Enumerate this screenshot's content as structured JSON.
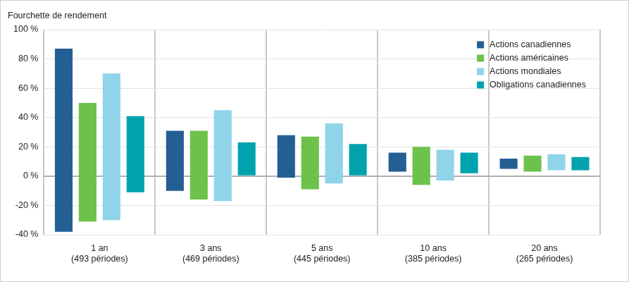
{
  "chart_data": {
    "type": "bar",
    "floating": true,
    "ylabel": "Fourchette de rendement",
    "categories": [
      "1 an\n(493 périodes)",
      "3 ans\n(469 périodes)",
      "5 ans\n(445 périodes)",
      "10 ans\n(385 périodes)",
      "20 ans\n(265 périodes)"
    ],
    "series": [
      {
        "name": "Actions canadiennes",
        "color": "#245f93",
        "values": [
          [
            -38,
            87
          ],
          [
            -10,
            31
          ],
          [
            -1,
            28
          ],
          [
            3,
            16
          ],
          [
            5,
            12
          ]
        ]
      },
      {
        "name": "Actions américaines",
        "color": "#6dc24b",
        "values": [
          [
            -31,
            50
          ],
          [
            -16,
            31
          ],
          [
            -9,
            27
          ],
          [
            -6,
            20
          ],
          [
            3,
            14
          ]
        ]
      },
      {
        "name": "Actions mondiales",
        "color": "#90d4e9",
        "values": [
          [
            -30,
            70
          ],
          [
            -17,
            45
          ],
          [
            -5,
            36
          ],
          [
            -3,
            18
          ],
          [
            4,
            15
          ]
        ]
      },
      {
        "name": "Obligations canadiennes",
        "color": "#00a3ad",
        "values": [
          [
            -11,
            41
          ],
          [
            0,
            23
          ],
          [
            0,
            22
          ],
          [
            2,
            16
          ],
          [
            4,
            13
          ]
        ]
      }
    ],
    "ylim": [
      -40,
      100
    ],
    "yticks": [
      {
        "value": -40,
        "label": "-40 %"
      },
      {
        "value": -20,
        "label": "-20 %"
      },
      {
        "value": 0,
        "label": "0 %"
      },
      {
        "value": 20,
        "label": "20 %"
      },
      {
        "value": 40,
        "label": "40 %"
      },
      {
        "value": 60,
        "label": "60 %"
      },
      {
        "value": 80,
        "label": "80 %"
      },
      {
        "value": 100,
        "label": "100 %"
      }
    ],
    "grid": true,
    "legend": "top right"
  }
}
